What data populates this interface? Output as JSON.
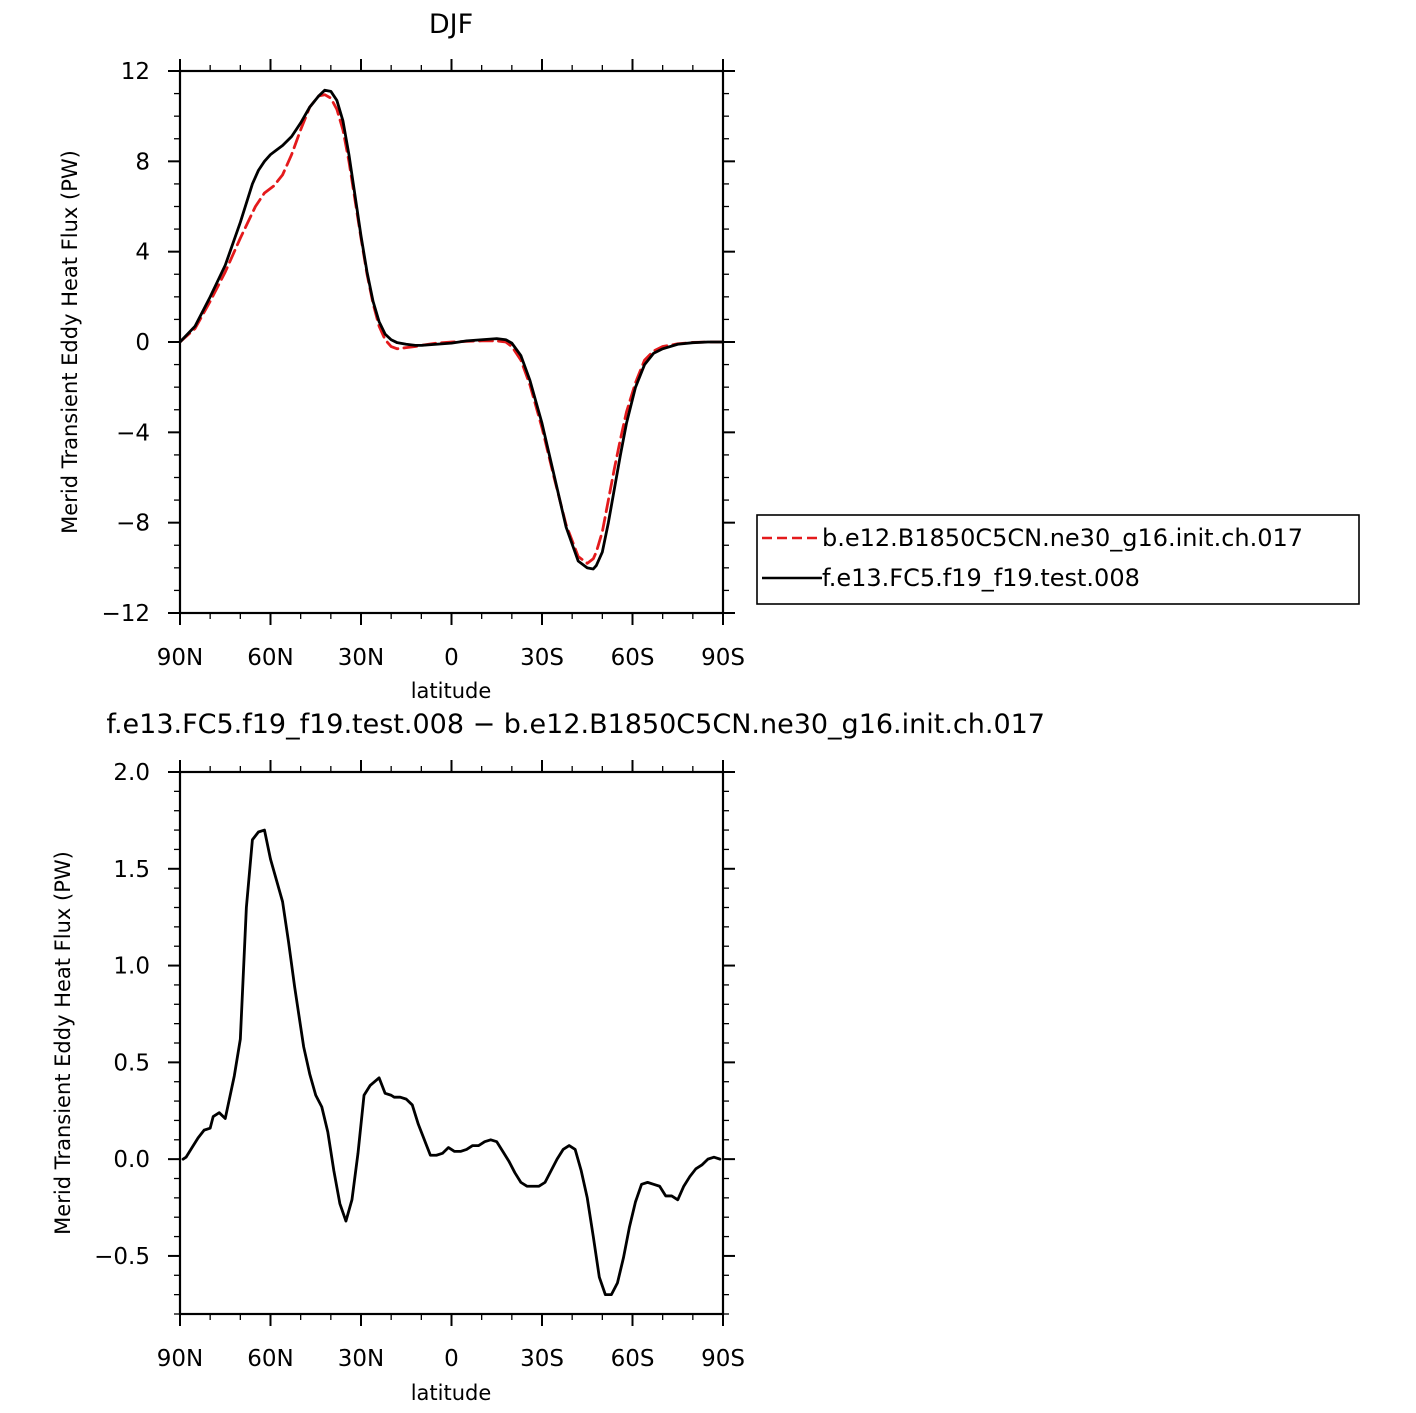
{
  "chart_data": [
    {
      "type": "line",
      "title": "DJF",
      "xlabel": "latitude",
      "ylabel": "Merid Transient Eddy Heat Flux (PW)",
      "xlim": [
        -90,
        90
      ],
      "ylim": [
        -12,
        12
      ],
      "x_ticks": [
        -90,
        -60,
        -30,
        0,
        30,
        60,
        90
      ],
      "x_tick_labels": [
        "90N",
        "60N",
        "30N",
        "0",
        "30S",
        "60S",
        "90S"
      ],
      "y_ticks": [
        -12,
        -8,
        -4,
        0,
        4,
        8,
        12
      ],
      "y_tick_labels": [
        "−12",
        "−8",
        "−4",
        "0",
        "4",
        "8",
        "12"
      ],
      "legend_position": "right",
      "series": [
        {
          "name": "b.e12.B1850C5CN.ne30_g16.init.ch.017",
          "color": "#e41a1c",
          "dash": "dashed",
          "x": [
            -90,
            -85,
            -80,
            -75,
            -70,
            -65,
            -62,
            -59,
            -56,
            -53,
            -50,
            -47,
            -44,
            -42,
            -40,
            -38,
            -36,
            -34,
            -32,
            -30,
            -28,
            -26,
            -24,
            -22,
            -20,
            -18,
            -15,
            -12,
            -10,
            -5,
            0,
            5,
            10,
            15,
            18,
            20,
            23,
            26,
            30,
            34,
            38,
            42,
            45,
            47,
            48,
            50,
            52,
            54,
            56,
            58,
            61,
            64,
            67,
            70,
            75,
            80,
            85,
            90
          ],
          "y": [
            0,
            0.6,
            1.8,
            3.1,
            4.6,
            6.0,
            6.6,
            6.9,
            7.4,
            8.3,
            9.4,
            10.4,
            10.9,
            10.95,
            10.8,
            10.3,
            9.4,
            8.0,
            6.3,
            4.6,
            3.0,
            1.7,
            0.7,
            0.1,
            -0.2,
            -0.3,
            -0.25,
            -0.2,
            -0.15,
            -0.05,
            0,
            0.03,
            0.05,
            0.05,
            0,
            -0.2,
            -0.8,
            -1.9,
            -3.8,
            -6.0,
            -8.1,
            -9.5,
            -9.8,
            -9.6,
            -9.3,
            -8.4,
            -7.0,
            -5.6,
            -4.3,
            -3.1,
            -1.8,
            -0.8,
            -0.4,
            -0.2,
            -0.08,
            -0.02,
            0,
            0
          ]
        },
        {
          "name": "f.e13.FC5.f19_f19.test.008",
          "color": "#000000",
          "dash": "solid",
          "x": [
            -90,
            -85,
            -80,
            -75,
            -70,
            -66,
            -64,
            -62,
            -60,
            -58,
            -56,
            -53,
            -50,
            -47,
            -44,
            -42,
            -40,
            -38,
            -36,
            -34,
            -32,
            -30,
            -28,
            -26,
            -24,
            -22,
            -20,
            -18,
            -15,
            -12,
            -10,
            -5,
            0,
            5,
            10,
            15,
            18,
            20,
            23,
            26,
            30,
            34,
            38,
            42,
            45,
            47,
            48,
            50,
            52,
            54,
            56,
            58,
            61,
            64,
            67,
            70,
            75,
            80,
            85,
            90
          ],
          "y": [
            0,
            0.7,
            2.0,
            3.4,
            5.3,
            7.0,
            7.6,
            8.0,
            8.3,
            8.5,
            8.7,
            9.1,
            9.7,
            10.4,
            10.9,
            11.15,
            11.1,
            10.7,
            9.8,
            8.3,
            6.5,
            4.7,
            3.1,
            1.8,
            0.9,
            0.35,
            0.1,
            -0.03,
            -0.1,
            -0.15,
            -0.15,
            -0.1,
            -0.05,
            0.05,
            0.1,
            0.15,
            0.1,
            -0.05,
            -0.6,
            -1.7,
            -3.6,
            -5.9,
            -8.2,
            -9.7,
            -10.0,
            -10.05,
            -9.9,
            -9.3,
            -8.0,
            -6.5,
            -5.0,
            -3.6,
            -2.0,
            -1.0,
            -0.5,
            -0.3,
            -0.1,
            -0.03,
            0,
            0
          ]
        }
      ]
    },
    {
      "type": "line",
      "title": "f.e13.FC5.f19_f19.test.008 − b.e12.B1850C5CN.ne30_g16.init.ch.017",
      "xlabel": "latitude",
      "ylabel": "Merid Transient Eddy Heat Flux (PW)",
      "xlim": [
        -90,
        90
      ],
      "ylim": [
        -0.8,
        2.0
      ],
      "x_ticks": [
        -90,
        -60,
        -30,
        0,
        30,
        60,
        90
      ],
      "x_tick_labels": [
        "90N",
        "60N",
        "30N",
        "0",
        "30S",
        "60S",
        "90S"
      ],
      "y_ticks": [
        -0.5,
        0.0,
        0.5,
        1.0,
        1.5,
        2.0
      ],
      "y_tick_labels": [
        "−0.5",
        "0.0",
        "0.5",
        "1.0",
        "1.5",
        "2.0"
      ],
      "series": [
        {
          "color": "#000000",
          "x": [
            -89,
            -88,
            -86,
            -84,
            -82,
            -80,
            -79,
            -77,
            -75,
            -72,
            -70,
            -68,
            -66,
            -64,
            -62,
            -60,
            -58,
            -56,
            -54,
            -52,
            -49,
            -47,
            -45,
            -43,
            -41,
            -39,
            -37,
            -35,
            -33,
            -31,
            -29,
            -27,
            -24,
            -22,
            -20,
            -19,
            -17,
            -15,
            -13,
            -11,
            -9,
            -7,
            -5,
            -3,
            -1,
            1,
            3,
            5,
            7,
            9,
            11,
            13,
            15,
            17,
            19,
            21,
            23,
            25,
            27,
            29,
            31,
            33,
            35,
            37,
            39,
            41,
            43,
            45,
            47,
            49,
            51,
            53,
            55,
            57,
            59,
            61,
            63,
            65,
            67,
            69,
            71,
            73,
            75,
            77,
            79,
            81,
            83,
            85,
            87,
            89
          ],
          "y": [
            0.0,
            0.01,
            0.06,
            0.11,
            0.15,
            0.16,
            0.22,
            0.24,
            0.21,
            0.43,
            0.62,
            1.3,
            1.65,
            1.69,
            1.7,
            1.55,
            1.44,
            1.33,
            1.12,
            0.89,
            0.58,
            0.44,
            0.33,
            0.27,
            0.14,
            -0.06,
            -0.23,
            -0.32,
            -0.21,
            0.03,
            0.33,
            0.38,
            0.42,
            0.34,
            0.33,
            0.32,
            0.32,
            0.31,
            0.28,
            0.18,
            0.1,
            0.02,
            0.02,
            0.03,
            0.06,
            0.04,
            0.04,
            0.05,
            0.07,
            0.07,
            0.09,
            0.1,
            0.09,
            0.04,
            -0.01,
            -0.07,
            -0.12,
            -0.14,
            -0.14,
            -0.14,
            -0.12,
            -0.06,
            0.0,
            0.05,
            0.07,
            0.05,
            -0.06,
            -0.2,
            -0.4,
            -0.61,
            -0.7,
            -0.7,
            -0.64,
            -0.51,
            -0.35,
            -0.22,
            -0.13,
            -0.12,
            -0.13,
            -0.14,
            -0.19,
            -0.19,
            -0.21,
            -0.14,
            -0.09,
            -0.05,
            -0.03,
            0.0,
            0.01,
            0.0
          ]
        }
      ]
    }
  ]
}
